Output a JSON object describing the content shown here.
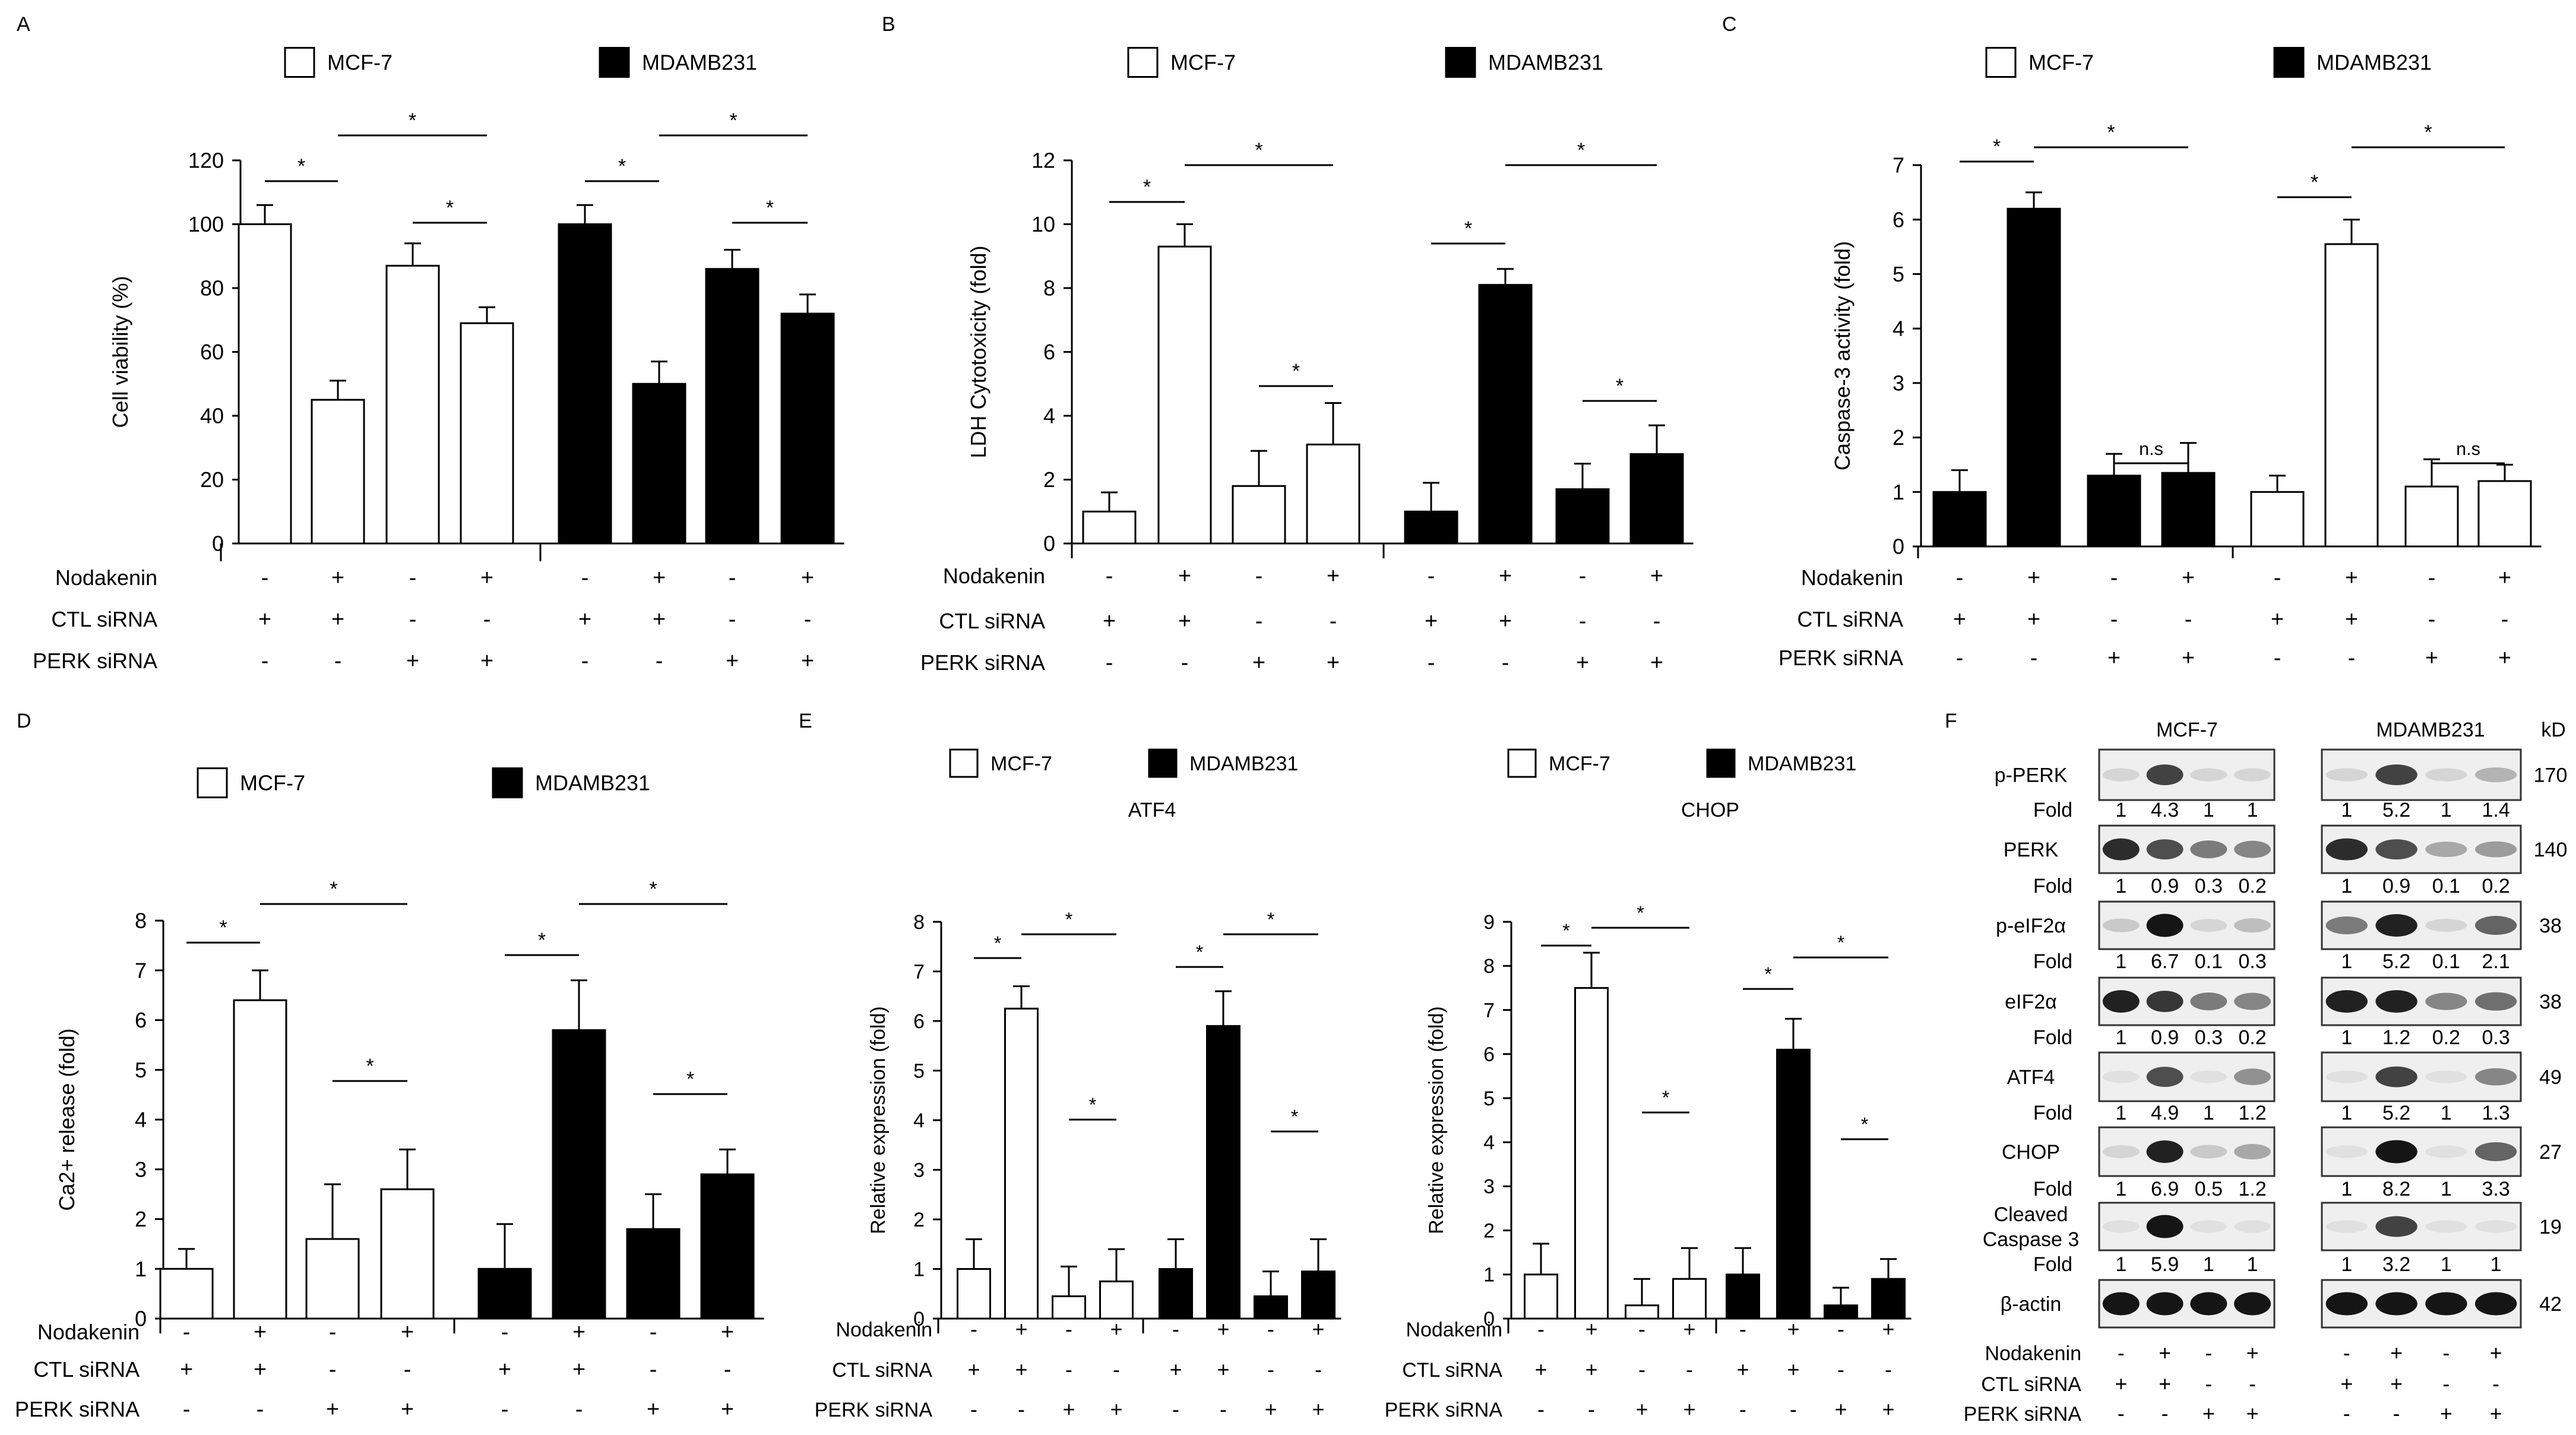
{
  "figure": {
    "background": "#ffffff",
    "ink": "#000000"
  },
  "legend": {
    "mcf7": "MCF-7",
    "mdamb231": "MDAMB231"
  },
  "treatment_rows": {
    "nodakenin": "Nodakenin",
    "ctl_sirna": "CTL siRNA",
    "perk_sirna": "PERK siRNA",
    "nodakenin_signs": [
      "-",
      "+",
      "-",
      "+"
    ],
    "ctl_signs": [
      "+",
      "+",
      "-",
      "-"
    ],
    "perk_signs": [
      "-",
      "-",
      "+",
      "+"
    ]
  },
  "chart_data": [
    {
      "panel": "A",
      "type": "bar",
      "ylabel": "Cell viability (%)",
      "ylim": [
        0,
        120
      ],
      "yticks": [
        "0",
        "20",
        "40",
        "60",
        "80",
        "100",
        "120"
      ],
      "categories": [
        "1",
        "2",
        "3",
        "4"
      ],
      "series": [
        {
          "name": "MCF-7",
          "color": "#ffffff",
          "values": [
            100,
            45,
            87,
            69
          ],
          "errors": [
            6,
            6,
            7,
            5
          ]
        },
        {
          "name": "MDAMB231",
          "color": "#000000",
          "values": [
            100,
            50,
            86,
            72
          ],
          "errors": [
            6,
            7,
            6,
            6
          ]
        }
      ],
      "annotations": [
        "*",
        "*",
        "*",
        "*",
        "*",
        "*"
      ]
    },
    {
      "panel": "B",
      "type": "bar",
      "ylabel": "LDH Cytotoxicity (fold)",
      "ylim": [
        0,
        12
      ],
      "yticks": [
        "0",
        "2",
        "4",
        "6",
        "8",
        "10",
        "12"
      ],
      "categories": [
        "1",
        "2",
        "3",
        "4"
      ],
      "series": [
        {
          "name": "MCF-7",
          "color": "#ffffff",
          "values": [
            1,
            9.3,
            1.8,
            3.1
          ],
          "errors": [
            0.6,
            0.7,
            1.1,
            1.3
          ]
        },
        {
          "name": "MDAMB231",
          "color": "#000000",
          "values": [
            1,
            8.1,
            1.7,
            2.8
          ],
          "errors": [
            0.9,
            0.5,
            0.8,
            0.9
          ]
        }
      ],
      "annotations": [
        "*",
        "*",
        "*",
        "*",
        "*",
        "*"
      ]
    },
    {
      "panel": "C",
      "type": "bar",
      "ylabel": "Caspase-3 activity (fold)",
      "ylim": [
        0,
        7
      ],
      "yticks": [
        "0",
        "1",
        "2",
        "3",
        "4",
        "5",
        "6",
        "7"
      ],
      "categories": [
        "1",
        "2",
        "3",
        "4"
      ],
      "series": [
        {
          "name": "MDAMB231",
          "color": "#000000",
          "values": [
            1,
            6.2,
            1.3,
            1.35
          ],
          "errors": [
            0.4,
            0.3,
            0.4,
            0.55
          ]
        },
        {
          "name": "MCF-7",
          "color": "#ffffff",
          "values": [
            1,
            5.55,
            1.1,
            1.2
          ],
          "errors": [
            0.3,
            0.45,
            0.5,
            0.3
          ]
        }
      ],
      "annotations": [
        "*",
        "*",
        "n.s",
        "*",
        "*",
        "n.s"
      ]
    },
    {
      "panel": "D",
      "type": "bar",
      "ylabel": "Ca2+ release (fold)",
      "ylim": [
        0,
        8
      ],
      "yticks": [
        "0",
        "1",
        "2",
        "3",
        "4",
        "5",
        "6",
        "7",
        "8"
      ],
      "categories": [
        "1",
        "2",
        "3",
        "4"
      ],
      "series": [
        {
          "name": "MCF-7",
          "color": "#ffffff",
          "values": [
            1,
            6.4,
            1.6,
            2.6
          ],
          "errors": [
            0.4,
            0.6,
            1.1,
            0.8
          ]
        },
        {
          "name": "MDAMB231",
          "color": "#000000",
          "values": [
            1,
            5.8,
            1.8,
            2.9
          ],
          "errors": [
            0.9,
            1.0,
            0.7,
            0.5
          ]
        }
      ],
      "annotations": [
        "*",
        "*",
        "*",
        "*",
        "*",
        "*"
      ]
    },
    {
      "panel": "E",
      "type": "bar",
      "title": "ATF4",
      "ylabel": "Relative expression (fold)",
      "ylim": [
        0,
        8
      ],
      "yticks": [
        "0",
        "1",
        "2",
        "3",
        "4",
        "5",
        "6",
        "7",
        "8"
      ],
      "categories": [
        "1",
        "2",
        "3",
        "4"
      ],
      "series": [
        {
          "name": "MCF-7",
          "color": "#ffffff",
          "values": [
            1,
            6.25,
            0.45,
            0.75
          ],
          "errors": [
            0.6,
            0.45,
            0.6,
            0.65
          ]
        },
        {
          "name": "MDAMB231",
          "color": "#000000",
          "values": [
            1,
            5.9,
            0.45,
            0.95
          ],
          "errors": [
            0.6,
            0.7,
            0.5,
            0.65
          ]
        }
      ],
      "annotations": [
        "*",
        "*",
        "*",
        "*",
        "*",
        "*"
      ]
    },
    {
      "panel": "",
      "type": "bar",
      "title": "CHOP",
      "ylabel": "Relative expression (fold)",
      "ylim": [
        0,
        9
      ],
      "yticks": [
        "0",
        "1",
        "2",
        "3",
        "4",
        "5",
        "6",
        "7",
        "8",
        "9"
      ],
      "categories": [
        "1",
        "2",
        "3",
        "4"
      ],
      "series": [
        {
          "name": "MCF-7",
          "color": "#ffffff",
          "values": [
            1,
            7.5,
            0.3,
            0.9
          ],
          "errors": [
            0.7,
            0.8,
            0.6,
            0.7
          ]
        },
        {
          "name": "MDAMB231",
          "color": "#000000",
          "values": [
            1,
            6.1,
            0.3,
            0.9
          ],
          "errors": [
            0.6,
            0.7,
            0.4,
            0.45
          ]
        }
      ],
      "annotations": [
        "*",
        "*",
        "*",
        "*",
        "*",
        "*"
      ]
    }
  ],
  "western": {
    "panel": "F",
    "col_headers": [
      "MCF-7",
      "MDAMB231"
    ],
    "unit": "kD",
    "fold_label": "Fold",
    "rows": [
      {
        "label": "p-PERK",
        "kd": "170",
        "mcf7_band": [
          0.1,
          0.75,
          0.1,
          0.1
        ],
        "mda_band": [
          0.1,
          0.75,
          0.1,
          0.25
        ],
        "mcf7_fold": [
          "1",
          "4.3",
          "1",
          "1"
        ],
        "mda_fold": [
          "1",
          "5.2",
          "1",
          "1.4"
        ]
      },
      {
        "label": "PERK",
        "kd": "140",
        "mcf7_band": [
          0.85,
          0.7,
          0.5,
          0.45
        ],
        "mda_band": [
          0.85,
          0.7,
          0.3,
          0.35
        ],
        "mcf7_fold": [
          "1",
          "0.9",
          "0.3",
          "0.2"
        ],
        "mda_fold": [
          "1",
          "0.9",
          "0.1",
          "0.2"
        ]
      },
      {
        "label": "p-eIF2α",
        "kd": "38",
        "mcf7_band": [
          0.15,
          0.95,
          0.1,
          0.2
        ],
        "mda_band": [
          0.5,
          0.9,
          0.1,
          0.6
        ],
        "mcf7_fold": [
          "1",
          "6.7",
          "0.1",
          "0.3"
        ],
        "mda_fold": [
          "1",
          "5.2",
          "0.1",
          "2.1"
        ]
      },
      {
        "label": "eIF2α",
        "kd": "38",
        "mcf7_band": [
          0.9,
          0.8,
          0.5,
          0.45
        ],
        "mda_band": [
          0.9,
          0.9,
          0.45,
          0.55
        ],
        "mcf7_fold": [
          "1",
          "0.9",
          "0.3",
          "0.2"
        ],
        "mda_fold": [
          "1",
          "1.2",
          "0.2",
          "0.3"
        ]
      },
      {
        "label": "ATF4",
        "kd": "49",
        "mcf7_band": [
          0.05,
          0.7,
          0.05,
          0.4
        ],
        "mda_band": [
          0.05,
          0.75,
          0.05,
          0.45
        ],
        "mcf7_fold": [
          "1",
          "4.9",
          "1",
          "1.2"
        ],
        "mda_fold": [
          "1",
          "5.2",
          "1",
          "1.3"
        ]
      },
      {
        "label": "CHOP",
        "kd": "27",
        "mcf7_band": [
          0.1,
          0.9,
          0.15,
          0.3
        ],
        "mda_band": [
          0.05,
          0.95,
          0.05,
          0.6
        ],
        "mcf7_fold": [
          "1",
          "6.9",
          "0.5",
          "1.2"
        ],
        "mda_fold": [
          "1",
          "8.2",
          "1",
          "3.3"
        ]
      },
      {
        "label": "Cleaved\nCaspase 3",
        "kd": "19",
        "mcf7_band": [
          0.05,
          0.95,
          0.05,
          0.05
        ],
        "mda_band": [
          0.05,
          0.75,
          0.05,
          0.05
        ],
        "mcf7_fold": [
          "1",
          "5.9",
          "1",
          "1"
        ],
        "mda_fold": [
          "1",
          "3.2",
          "1",
          "1"
        ]
      },
      {
        "label": "β-actin",
        "kd": "42",
        "mcf7_band": [
          0.95,
          0.95,
          0.95,
          0.95
        ],
        "mda_band": [
          0.95,
          0.95,
          0.95,
          0.95
        ],
        "mcf7_fold": [],
        "mda_fold": []
      }
    ]
  }
}
